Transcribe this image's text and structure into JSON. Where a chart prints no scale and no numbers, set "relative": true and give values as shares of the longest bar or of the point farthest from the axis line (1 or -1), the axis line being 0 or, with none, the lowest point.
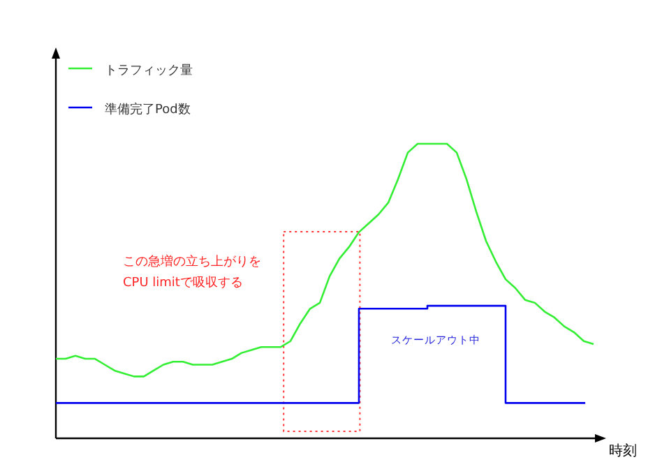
{
  "chart_data": {
    "type": "line",
    "relative": true,
    "xlabel": "時刻",
    "legend": "top left",
    "categories": [
      null,
      null,
      null,
      null,
      null,
      null,
      null,
      null,
      null,
      null,
      null,
      null,
      null,
      null,
      null,
      null,
      null,
      null,
      null,
      null,
      null,
      null,
      null,
      null,
      null,
      null,
      null,
      null,
      null,
      null,
      null,
      null,
      null,
      null,
      null,
      null,
      null,
      null,
      null,
      null,
      null,
      null,
      null,
      null,
      null,
      null,
      null,
      null,
      null,
      null,
      null,
      null,
      null,
      null,
      null,
      null
    ],
    "series": [
      {
        "name": "トラフィック量",
        "color": "#33ee33",
        "values": [
          0.27,
          0.27,
          0.28,
          0.27,
          0.27,
          0.25,
          0.23,
          0.22,
          0.21,
          0.21,
          0.23,
          0.25,
          0.26,
          0.26,
          0.25,
          0.25,
          0.25,
          0.26,
          0.27,
          0.29,
          0.3,
          0.31,
          0.31,
          0.31,
          0.33,
          0.39,
          0.44,
          0.46,
          0.55,
          0.61,
          0.65,
          0.7,
          0.73,
          0.76,
          0.8,
          0.88,
          0.97,
          1.0,
          1.0,
          1.0,
          1.0,
          0.97,
          0.88,
          0.77,
          0.67,
          0.6,
          0.54,
          0.51,
          0.47,
          0.46,
          0.43,
          0.41,
          0.38,
          0.36,
          0.33,
          0.32
        ]
      },
      {
        "name": "準備完了Pod数",
        "color": "#0000ee",
        "type": "step",
        "values": [
          0.12,
          0.12,
          0.12,
          0.12,
          0.12,
          0.12,
          0.12,
          0.12,
          0.12,
          0.12,
          0.12,
          0.12,
          0.12,
          0.12,
          0.12,
          0.12,
          0.12,
          0.12,
          0.12,
          0.12,
          0.12,
          0.12,
          0.12,
          0.12,
          0.12,
          0.12,
          0.12,
          0.12,
          0.12,
          0.12,
          0.12,
          0.44,
          0.44,
          0.44,
          0.44,
          0.44,
          0.44,
          0.44,
          0.45,
          0.45,
          0.45,
          0.45,
          0.45,
          0.45,
          0.45,
          0.45,
          0.12,
          0.12,
          0.12,
          0.12,
          0.12,
          0.12,
          0.12,
          0.12,
          0.12,
          null
        ]
      }
    ],
    "annotations": [
      "この急増の立ち上がりを\nCPU limitで吸収する",
      "スケールアウト中"
    ]
  }
}
